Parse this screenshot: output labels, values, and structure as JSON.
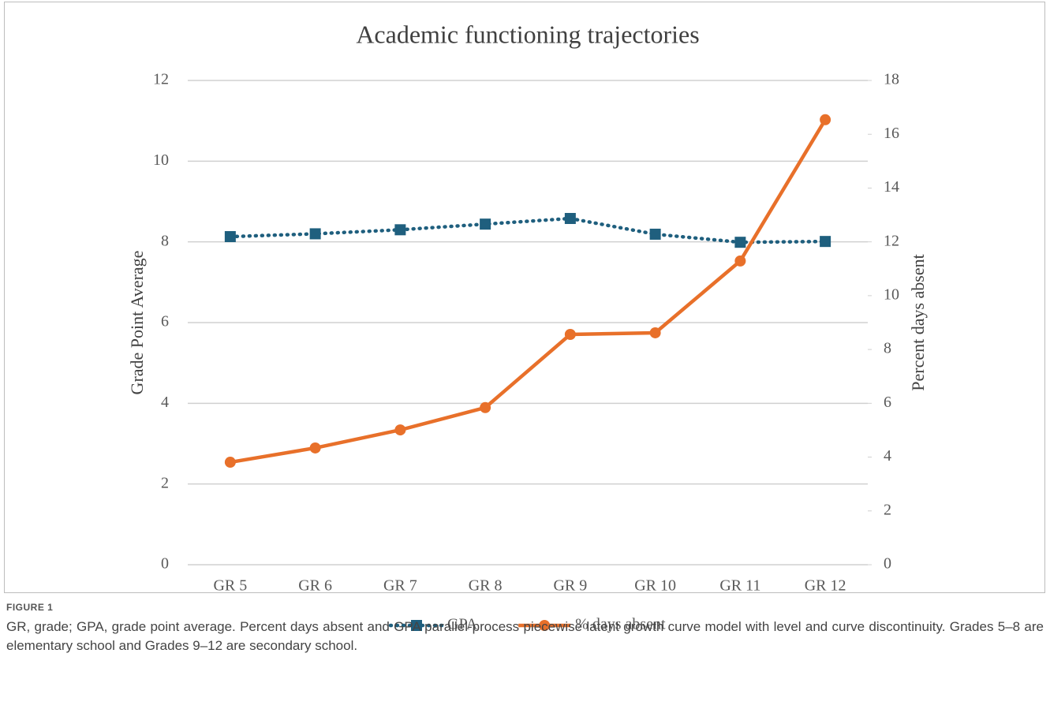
{
  "chart_data": {
    "type": "line",
    "title": "Academic functioning trajectories",
    "ylabel": "Grade Point Average",
    "y2label": "Percent days absent",
    "categories": [
      "GR 5",
      "GR 6",
      "GR 7",
      "GR 8",
      "GR 9",
      "GR 10",
      "GR 11",
      "GR 12"
    ],
    "series": [
      {
        "name": "GPA",
        "color": "#1f5f7e",
        "marker": "square",
        "line_style": "dotted",
        "values": [
          8.13,
          8.2,
          8.3,
          8.44,
          8.58,
          8.19,
          7.99,
          8.01
        ]
      },
      {
        "name": "% days absent",
        "color": "#e8702a",
        "marker": "circle",
        "line_style": "solid",
        "axis": "y2",
        "values": [
          3.81,
          4.34,
          5.01,
          5.84,
          8.56,
          8.62,
          11.29,
          16.54
        ]
      }
    ],
    "ylim": [
      0,
      12
    ],
    "yticks": [
      0,
      2,
      4,
      6,
      8,
      10,
      12
    ],
    "y2lim": [
      0,
      18
    ],
    "y2ticks": [
      0,
      2,
      4,
      6,
      8,
      10,
      12,
      14,
      16,
      18
    ],
    "grid": true,
    "legend": "bottom"
  },
  "caption": {
    "label": "FIGURE 1",
    "text": "GR, grade; GPA, grade point average. Percent days absent and GPA parallel-process piecewise latent growth curve model with level and curve discontinuity. Grades 5–8 are elementary school and Grades 9–12 are secondary school."
  }
}
